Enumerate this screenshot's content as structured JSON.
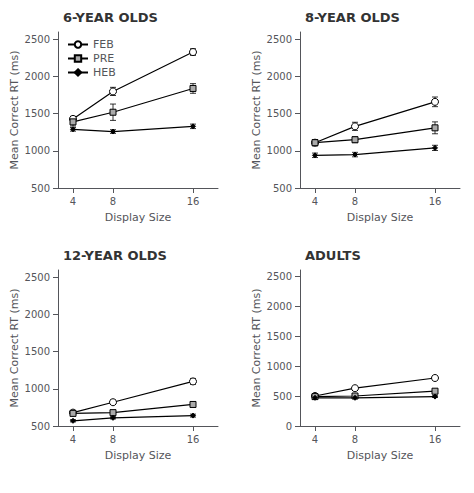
{
  "chart_data": [
    {
      "type": "line",
      "title": "6-YEAR OLDS",
      "xlabel": "Display Size",
      "ylabel": "Mean Correct RT (ms)",
      "x": [
        4,
        8,
        16
      ],
      "xlim": [
        2.5,
        18.5
      ],
      "xticks": [
        4,
        8,
        16
      ],
      "ylim": [
        500,
        2600
      ],
      "yticks": [
        500,
        1000,
        1500,
        2000,
        2500
      ],
      "grid": false,
      "legend": "upper left",
      "color": "#000000",
      "series": [
        {
          "name": "FEB",
          "values": [
            1430,
            1800,
            2330
          ],
          "errors": [
            35,
            55,
            45
          ],
          "marker": "circle",
          "color": "#ffffff"
        },
        {
          "name": "PRE",
          "values": [
            1390,
            1520,
            1840
          ],
          "errors": [
            55,
            110,
            65
          ],
          "marker": "square",
          "color": "#aaaaaa"
        },
        {
          "name": "HEB",
          "values": [
            1290,
            1260,
            1330
          ],
          "errors": [
            25,
            25,
            30
          ],
          "marker": "diamond",
          "color": "#000000"
        }
      ]
    },
    {
      "type": "line",
      "title": "8-YEAR OLDS",
      "xlabel": "Display Size",
      "ylabel": "Mean Correct RT (ms)",
      "x": [
        4,
        8,
        16
      ],
      "xlim": [
        2.5,
        18.5
      ],
      "xticks": [
        4,
        8,
        16
      ],
      "ylim": [
        500,
        2600
      ],
      "yticks": [
        500,
        1000,
        1500,
        2000,
        2500
      ],
      "grid": false,
      "color": "#000000",
      "series": [
        {
          "name": "FEB",
          "values": [
            1110,
            1330,
            1660
          ],
          "errors": [
            40,
            55,
            65
          ],
          "marker": "circle",
          "color": "#ffffff"
        },
        {
          "name": "PRE",
          "values": [
            1110,
            1150,
            1310
          ],
          "errors": [
            40,
            40,
            80
          ],
          "marker": "square",
          "color": "#aaaaaa"
        },
        {
          "name": "HEB",
          "values": [
            940,
            950,
            1040
          ],
          "errors": [
            30,
            30,
            35
          ],
          "marker": "diamond",
          "color": "#000000"
        }
      ]
    },
    {
      "type": "line",
      "title": "12-YEAR OLDS",
      "xlabel": "Display Size",
      "ylabel": "Mean Correct RT (ms)",
      "x": [
        4,
        8,
        16
      ],
      "xlim": [
        2.5,
        18.5
      ],
      "xticks": [
        4,
        8,
        16
      ],
      "ylim": [
        500,
        2600
      ],
      "yticks": [
        500,
        1000,
        1500,
        2000,
        2500
      ],
      "grid": false,
      "color": "#000000",
      "series": [
        {
          "name": "FEB",
          "values": [
            680,
            820,
            1100
          ],
          "errors": [
            25,
            30,
            40
          ],
          "marker": "circle",
          "color": "#ffffff"
        },
        {
          "name": "PRE",
          "values": [
            670,
            680,
            790
          ],
          "errors": [
            20,
            20,
            30
          ],
          "marker": "square",
          "color": "#aaaaaa"
        },
        {
          "name": "HEB",
          "values": [
            570,
            610,
            640
          ],
          "errors": [
            15,
            15,
            20
          ],
          "marker": "diamond",
          "color": "#000000"
        }
      ]
    },
    {
      "type": "line",
      "title": "ADULTS",
      "xlabel": "Display Size",
      "ylabel": "Mean Correct RT (ms)",
      "x": [
        4,
        8,
        16
      ],
      "xlim": [
        2.5,
        18.5
      ],
      "xticks": [
        4,
        8,
        16
      ],
      "ylim": [
        0,
        2600
      ],
      "yticks": [
        0,
        500,
        1000,
        1500,
        2000,
        2500
      ],
      "grid": false,
      "color": "#000000",
      "series": [
        {
          "name": "FEB",
          "values": [
            500,
            630,
            800
          ],
          "errors": [
            15,
            20,
            25
          ],
          "marker": "circle",
          "color": "#ffffff"
        },
        {
          "name": "PRE",
          "values": [
            490,
            500,
            580
          ],
          "errors": [
            15,
            15,
            20
          ],
          "marker": "square",
          "color": "#aaaaaa"
        },
        {
          "name": "HEB",
          "values": [
            470,
            470,
            490
          ],
          "errors": [
            10,
            10,
            15
          ],
          "marker": "diamond",
          "color": "#000000"
        }
      ]
    }
  ]
}
